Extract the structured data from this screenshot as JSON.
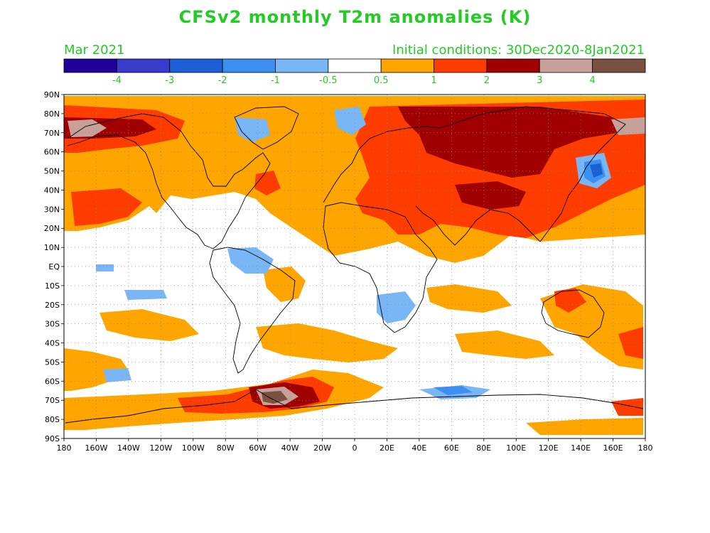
{
  "header": {
    "title": "CFSv2 monthly T2m anomalies (K)",
    "month": "Mar 2021",
    "initial_conditions": "Initial conditions: 30Dec2020-8Jan2021"
  },
  "colorbar": {
    "colors": [
      "#1f0099",
      "#3a3acc",
      "#1a5fd6",
      "#3c8ff0",
      "#78b6f5",
      "#ffffff",
      "#ffa500",
      "#ff3c00",
      "#a00000",
      "#c8a09a",
      "#7a5040"
    ],
    "labels": [
      "-4",
      "-3",
      "-2",
      "-1",
      "-0.5",
      "0.5",
      "1",
      "2",
      "3",
      "4"
    ]
  },
  "axes": {
    "lat_labels": [
      "90N",
      "80N",
      "70N",
      "60N",
      "50N",
      "40N",
      "30N",
      "20N",
      "10N",
      "EQ",
      "10S",
      "20S",
      "30S",
      "40S",
      "50S",
      "60S",
      "70S",
      "80S",
      "90S"
    ],
    "lon_labels": [
      "180",
      "160W",
      "140W",
      "120W",
      "100W",
      "80W",
      "60W",
      "40W",
      "20W",
      "0",
      "20E",
      "40E",
      "60E",
      "80E",
      "100E",
      "120E",
      "140E",
      "160E",
      "180"
    ]
  },
  "palette": {
    "orange": "#ffa500",
    "red": "#ff3c00",
    "darkred": "#a00000",
    "tan": "#c8a09a",
    "brown": "#7a5040",
    "lightblue": "#78b6f5",
    "blue": "#3c8ff0",
    "darkblue": "#1a5fd6"
  }
}
